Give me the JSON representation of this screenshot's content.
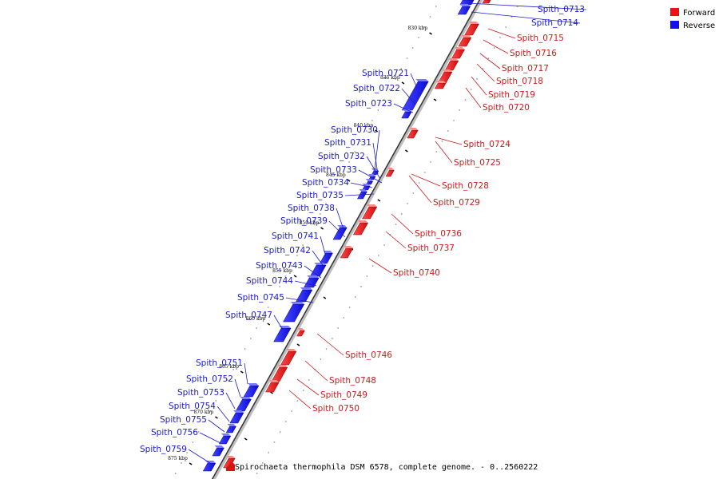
{
  "caption": "Spirochaeta thermophila DSM 6578, complete genome. - 0..2560222",
  "legend": [
    {
      "label": "Forward",
      "color": "#ee1111"
    },
    {
      "label": "Reverse",
      "color": "#1111ee"
    }
  ],
  "kbp_ticks": [
    "830 kbp",
    "835 kbp",
    "840 kbp",
    "845 kbp",
    "850 kbp",
    "855 kbp",
    "860 kbp",
    "865 kbp",
    "870 kbp",
    "875 kbp"
  ],
  "reverse_genes": [
    "Spith_0713",
    "Spith_0714",
    "Spith_0721",
    "Spith_0722",
    "Spith_0723",
    "Spith_0730",
    "Spith_0731",
    "Spith_0732",
    "Spith_0733",
    "Spith_0734",
    "Spith_0735",
    "Spith_0738",
    "Spith_0739",
    "Spith_0741",
    "Spith_0742",
    "Spith_0743",
    "Spith_0744",
    "Spith_0745",
    "Spith_0747",
    "Spith_0751",
    "Spith_0752",
    "Spith_0753",
    "Spith_0754",
    "Spith_0755",
    "Spith_0756",
    "Spith_0759"
  ],
  "forward_genes": [
    "Spith_0715",
    "Spith_0716",
    "Spith_0717",
    "Spith_0718",
    "Spith_0719",
    "Spith_0720",
    "Spith_0724",
    "Spith_0725",
    "Spith_0728",
    "Spith_0729",
    "Spith_0736",
    "Spith_0737",
    "Spith_0740",
    "Spith_0746",
    "Spith_0748",
    "Spith_0749",
    "Spith_0750"
  ]
}
